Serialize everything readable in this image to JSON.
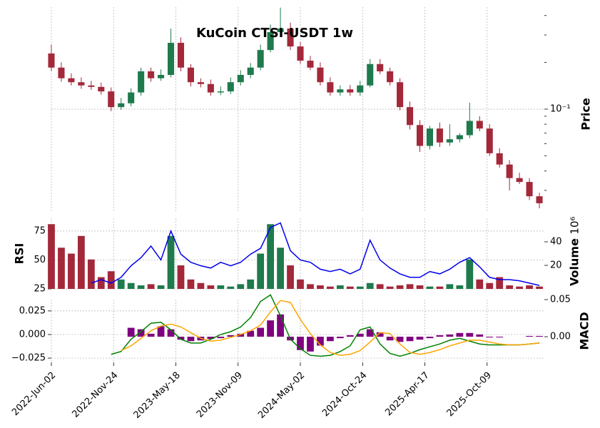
{
  "chart_data": [
    {
      "type": "candlestick",
      "title": "KuCoin CTSI-USDT 1w",
      "ylabel": "Price",
      "x": [
        0,
        4,
        8,
        12,
        16,
        20,
        24,
        28,
        32,
        36,
        40,
        44,
        48,
        52,
        56,
        60,
        64,
        68,
        72,
        76,
        80,
        84,
        88,
        92,
        96,
        100,
        104,
        108,
        112,
        116,
        120,
        124,
        128,
        132,
        136,
        140,
        144,
        148,
        152,
        156,
        160,
        164,
        168,
        172,
        176,
        180,
        184,
        188,
        192,
        196
      ],
      "xlim": [
        0,
        198
      ],
      "xticks": [
        {
          "value": 0,
          "label": "2022-Jun-02"
        },
        {
          "value": 25,
          "label": "2022-Nov-24"
        },
        {
          "value": 50,
          "label": "2023-May-18"
        },
        {
          "value": 75,
          "label": "2023-Nov-09"
        },
        {
          "value": 100,
          "label": "2024-May-02"
        },
        {
          "value": 125,
          "label": "2024-Oct-24"
        },
        {
          "value": 150,
          "label": "2025-Apr-17"
        },
        {
          "value": 175,
          "label": "2025-Oct-09"
        }
      ],
      "open": [
        0.228,
        0.185,
        0.158,
        0.149,
        0.142,
        0.139,
        0.13,
        0.103,
        0.109,
        0.128,
        0.175,
        0.158,
        0.166,
        0.267,
        0.185,
        0.149,
        0.145,
        0.128,
        0.13,
        0.149,
        0.166,
        0.185,
        0.24,
        0.313,
        0.33,
        0.253,
        0.205,
        0.185,
        0.149,
        0.128,
        0.134,
        0.128,
        0.142,
        0.195,
        0.175,
        0.149,
        0.103,
        0.079,
        0.058,
        0.075,
        0.061,
        0.064,
        0.068,
        0.084,
        0.075,
        0.052,
        0.044,
        0.036,
        0.034,
        0.0275
      ],
      "high": [
        0.26,
        0.2,
        0.17,
        0.16,
        0.152,
        0.148,
        0.138,
        0.118,
        0.136,
        0.185,
        0.185,
        0.18,
        0.33,
        0.29,
        0.195,
        0.158,
        0.155,
        0.14,
        0.16,
        0.178,
        0.198,
        0.26,
        0.35,
        0.45,
        0.36,
        0.27,
        0.22,
        0.2,
        0.16,
        0.142,
        0.143,
        0.152,
        0.21,
        0.21,
        0.185,
        0.158,
        0.112,
        0.085,
        0.078,
        0.082,
        0.08,
        0.07,
        0.11,
        0.09,
        0.08,
        0.056,
        0.047,
        0.039,
        0.036,
        0.029
      ],
      "low": [
        0.175,
        0.15,
        0.142,
        0.135,
        0.133,
        0.124,
        0.097,
        0.099,
        0.104,
        0.122,
        0.15,
        0.152,
        0.16,
        0.175,
        0.14,
        0.138,
        0.122,
        0.123,
        0.125,
        0.142,
        0.158,
        0.178,
        0.232,
        0.3,
        0.24,
        0.196,
        0.178,
        0.142,
        0.122,
        0.122,
        0.122,
        0.122,
        0.138,
        0.168,
        0.142,
        0.098,
        0.074,
        0.053,
        0.055,
        0.057,
        0.058,
        0.061,
        0.065,
        0.072,
        0.05,
        0.042,
        0.03,
        0.033,
        0.026,
        0.023
      ],
      "close": [
        0.185,
        0.158,
        0.149,
        0.142,
        0.139,
        0.13,
        0.103,
        0.109,
        0.128,
        0.175,
        0.158,
        0.166,
        0.267,
        0.185,
        0.149,
        0.145,
        0.128,
        0.13,
        0.149,
        0.166,
        0.185,
        0.24,
        0.313,
        0.33,
        0.253,
        0.205,
        0.185,
        0.149,
        0.128,
        0.134,
        0.128,
        0.142,
        0.195,
        0.175,
        0.149,
        0.103,
        0.079,
        0.058,
        0.075,
        0.061,
        0.064,
        0.068,
        0.084,
        0.075,
        0.052,
        0.044,
        0.036,
        0.034,
        0.0275,
        0.0248
      ],
      "up_color": "#1f7a4d",
      "down_color": "#a3283a",
      "log_y": true,
      "ylim": [
        0.0216,
        0.453
      ],
      "yticks": [
        {
          "value": 0.1,
          "label": "10⁻¹"
        }
      ],
      "yminorticks": [
        0.03,
        0.04,
        0.05,
        0.06,
        0.07,
        0.08,
        0.09,
        0.2,
        0.3,
        0.4
      ],
      "grid": true
    },
    {
      "type": "combo",
      "ylabel": "RSI",
      "y2label": "Volume",
      "y2_offset": "10⁶",
      "ylim": [
        25,
        86
      ],
      "yticks": [
        25,
        50,
        75
      ],
      "y2lim": [
        0,
        60
      ],
      "y2ticks": [
        20,
        40
      ],
      "grid": true,
      "series": [
        {
          "style": "bar",
          "axis": "y2",
          "color_by": "direction",
          "values": [
            55,
            35,
            30,
            45,
            25,
            10,
            15,
            8,
            5,
            3,
            4,
            3,
            45,
            20,
            8,
            5,
            3,
            3,
            2,
            4,
            8,
            30,
            55,
            35,
            20,
            8,
            4,
            3,
            2,
            3,
            2,
            2,
            5,
            4,
            2,
            3,
            4,
            3,
            2,
            2,
            4,
            3,
            25,
            8,
            5,
            10,
            3,
            2,
            3,
            2
          ]
        },
        {
          "style": "line",
          "color": "#0000ee",
          "values": [
            null,
            null,
            null,
            null,
            30,
            33,
            30,
            35,
            45,
            52,
            62,
            50,
            75,
            55,
            48,
            45,
            43,
            48,
            45,
            48,
            55,
            60,
            78,
            82,
            58,
            50,
            48,
            42,
            40,
            42,
            38,
            42,
            67,
            50,
            43,
            38,
            35,
            35,
            40,
            38,
            42,
            48,
            52,
            44,
            35,
            33,
            33,
            32,
            30,
            28
          ]
        }
      ]
    },
    {
      "type": "combo",
      "ylabel": "MACD",
      "ylim": [
        -0.0295,
        0.037
      ],
      "yticks": [
        {
          "value": -0.025,
          "label": "−0.025"
        },
        {
          "value": 0,
          "label": "0.000"
        },
        {
          "value": 0.025,
          "label": "0.025"
        }
      ],
      "y2lim": [
        -0.0346,
        0.05
      ],
      "y2ticks": [
        {
          "value": 0,
          "label": "0.00"
        },
        {
          "value": 0.05,
          "label": "0.05"
        }
      ],
      "grid": true,
      "series": [
        {
          "style": "bar",
          "axis": "y2",
          "color": "#800080",
          "values": [
            null,
            null,
            null,
            null,
            null,
            null,
            null,
            null,
            0.012,
            0.01,
            0.004,
            0.014,
            0.01,
            -0.004,
            -0.006,
            -0.005,
            -0.003,
            -0.002,
            0.002,
            0.004,
            0.008,
            0.012,
            0.022,
            0.03,
            -0.005,
            -0.018,
            -0.02,
            -0.012,
            -0.006,
            -0.002,
            0.002,
            0.004,
            0.01,
            0.006,
            -0.005,
            -0.007,
            -0.006,
            -0.004,
            -0.002,
            0.002,
            0.003,
            0.005,
            0.005,
            0.003,
            -0.001,
            -0.001,
            0,
            0,
            0.001,
            0.001
          ]
        },
        {
          "style": "line",
          "color": "#008000",
          "values": [
            null,
            null,
            null,
            null,
            null,
            null,
            -0.021,
            -0.018,
            -0.005,
            0.003,
            0.012,
            0.013,
            0.005,
            -0.005,
            -0.009,
            -0.009,
            -0.005,
            0,
            0.003,
            0.008,
            0.018,
            0.035,
            0.042,
            0.02,
            -0.005,
            -0.015,
            -0.022,
            -0.023,
            -0.022,
            -0.018,
            -0.012,
            0.005,
            0.008,
            -0.01,
            -0.02,
            -0.023,
            -0.02,
            -0.016,
            -0.013,
            -0.01,
            -0.006,
            -0.004,
            -0.007,
            -0.01,
            -0.011,
            -0.011,
            -0.011,
            -0.011,
            -0.01,
            -0.009
          ]
        },
        {
          "style": "line",
          "color": "#ffa500",
          "values": [
            null,
            null,
            null,
            null,
            null,
            null,
            null,
            -0.017,
            -0.012,
            -0.004,
            0.004,
            0.009,
            0.011,
            0.008,
            0.002,
            -0.004,
            -0.007,
            -0.006,
            -0.003,
            0,
            0.004,
            0.01,
            0.024,
            0.036,
            0.034,
            0.016,
            0.001,
            -0.011,
            -0.019,
            -0.022,
            -0.021,
            -0.017,
            -0.008,
            0.002,
            0.001,
            -0.01,
            -0.019,
            -0.021,
            -0.019,
            -0.016,
            -0.012,
            -0.009,
            -0.006,
            -0.006,
            -0.008,
            -0.01,
            -0.011,
            -0.011,
            -0.01,
            -0.009
          ]
        }
      ]
    }
  ]
}
